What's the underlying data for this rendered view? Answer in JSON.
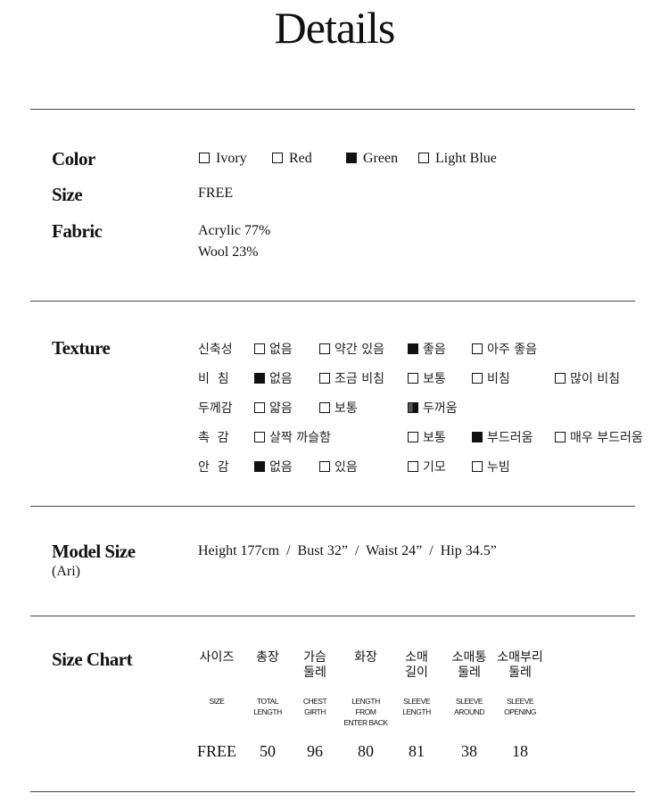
{
  "title": "Details",
  "color": {
    "label": "Color",
    "options": [
      {
        "label": "Ivory",
        "checked": false
      },
      {
        "label": "Red",
        "checked": false
      },
      {
        "label": "Green",
        "checked": true
      },
      {
        "label": "Light Blue",
        "checked": false
      }
    ]
  },
  "size": {
    "label": "Size",
    "value": "FREE"
  },
  "fabric": {
    "label": "Fabric",
    "lines": [
      "Acrylic 77%",
      "Wool 23%"
    ]
  },
  "texture": {
    "label": "Texture",
    "rows": [
      {
        "label": "신축성",
        "options": [
          {
            "label": "없음",
            "state": "off"
          },
          {
            "label": "약간 있음",
            "state": "off"
          },
          {
            "label": "좋음",
            "state": "on"
          },
          {
            "label": "아주 좋음",
            "state": "off"
          }
        ]
      },
      {
        "label": "비  침",
        "options": [
          {
            "label": "없음",
            "state": "on"
          },
          {
            "label": "조금 비침",
            "state": "off"
          },
          {
            "label": "보통",
            "state": "off"
          },
          {
            "label": "비침",
            "state": "off"
          },
          {
            "label": "많이 비침",
            "state": "off"
          }
        ]
      },
      {
        "label": "두께감",
        "options": [
          {
            "label": "얇음",
            "state": "off"
          },
          {
            "label": "보통",
            "state": "off"
          },
          {
            "label": "두꺼움",
            "state": "half"
          }
        ]
      },
      {
        "label": "촉  감",
        "options": [
          {
            "label": "살짝 까슬함",
            "state": "off"
          },
          {
            "label": "보통",
            "state": "off"
          },
          {
            "label": "부드러움",
            "state": "on"
          },
          {
            "label": "매우 부드러움",
            "state": "off"
          }
        ]
      },
      {
        "label": "안  감",
        "options": [
          {
            "label": "없음",
            "state": "on"
          },
          {
            "label": "있음",
            "state": "off"
          },
          {
            "label": "기모",
            "state": "off"
          },
          {
            "label": "누빔",
            "state": "off"
          }
        ]
      }
    ]
  },
  "model": {
    "label": "Model Size",
    "name": "(Ari)",
    "value": "Height 177cm  /  Bust 32”  /  Waist 24”  /  Hip 34.5”"
  },
  "size_chart": {
    "label": "Size Chart",
    "columns": [
      {
        "kr": "사이즈",
        "en": "SIZE",
        "value": "FREE"
      },
      {
        "kr": "총장",
        "en": "TOTAL\nLENGTH",
        "value": "50"
      },
      {
        "kr": "가슴\n둘레",
        "en": "CHEST\nGIRTH",
        "value": "96"
      },
      {
        "kr": "화장",
        "en": "LENGTH\nFROM\nENTER BACK",
        "value": "80"
      },
      {
        "kr": "소매\n길이",
        "en": "SLEEVE\nLENGTH",
        "value": "81"
      },
      {
        "kr": "소매통\n둘레",
        "en": "SLEEVE\nAROUND",
        "value": "38"
      },
      {
        "kr": "소매부리\n둘레",
        "en": "SLEEVE\nOPENING",
        "value": "18"
      }
    ]
  }
}
